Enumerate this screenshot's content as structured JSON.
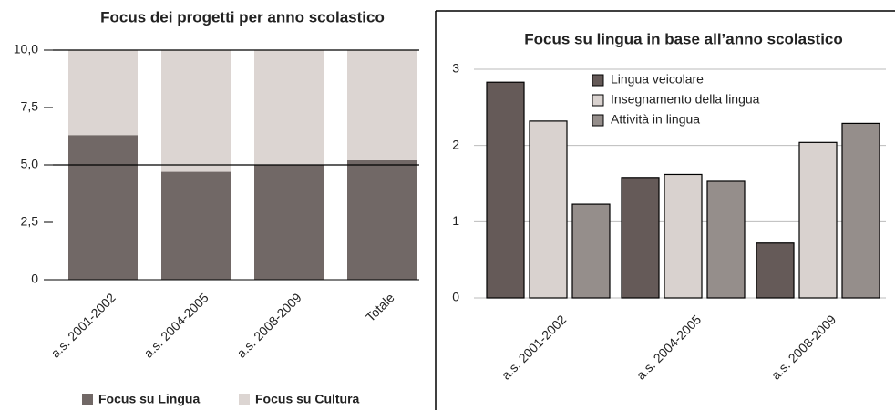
{
  "chart_data": [
    {
      "type": "stacked_bar",
      "title": "Focus dei progetti per anno scolastico",
      "categories": [
        "a.s. 2001-2002",
        "a.s. 2004-2005",
        "a.s. 2008-2009",
        "Totale"
      ],
      "series": [
        {
          "name": "Focus su Lingua",
          "color": "#716866",
          "values": [
            6.3,
            4.7,
            5.0,
            5.2
          ]
        },
        {
          "name": "Focus su Cultura",
          "color": "#dcd5d2",
          "values": [
            3.7,
            5.3,
            5.0,
            4.8
          ]
        }
      ],
      "ylim": [
        0,
        10
      ],
      "yticks": [
        {
          "value": 0,
          "label": "0"
        },
        {
          "value": 2.5,
          "label": "2,5"
        },
        {
          "value": 5,
          "label": "5,0"
        },
        {
          "value": 7.5,
          "label": "7,5"
        },
        {
          "value": 10,
          "label": "10,0"
        }
      ],
      "legend": "bottom"
    },
    {
      "type": "grouped_bar",
      "title": "Focus su lingua in base all’anno scolastico",
      "categories": [
        "a.s. 2001-2002",
        "a.s. 2004-2005",
        "a.s. 2008-2009"
      ],
      "series": [
        {
          "name": "Lingua veicolare",
          "color": "#655a58",
          "values": [
            2.83,
            1.58,
            0.72
          ]
        },
        {
          "name": "Insegnamento della lingua",
          "color": "#d9d2cf",
          "values": [
            2.32,
            1.62,
            2.04
          ]
        },
        {
          "name": "Attività in lingua",
          "color": "#958e8b",
          "values": [
            1.23,
            1.53,
            2.29
          ]
        }
      ],
      "ylim": [
        0,
        3
      ],
      "yticks": [
        0,
        1,
        2,
        3
      ],
      "grid": true,
      "legend": "top"
    }
  ]
}
